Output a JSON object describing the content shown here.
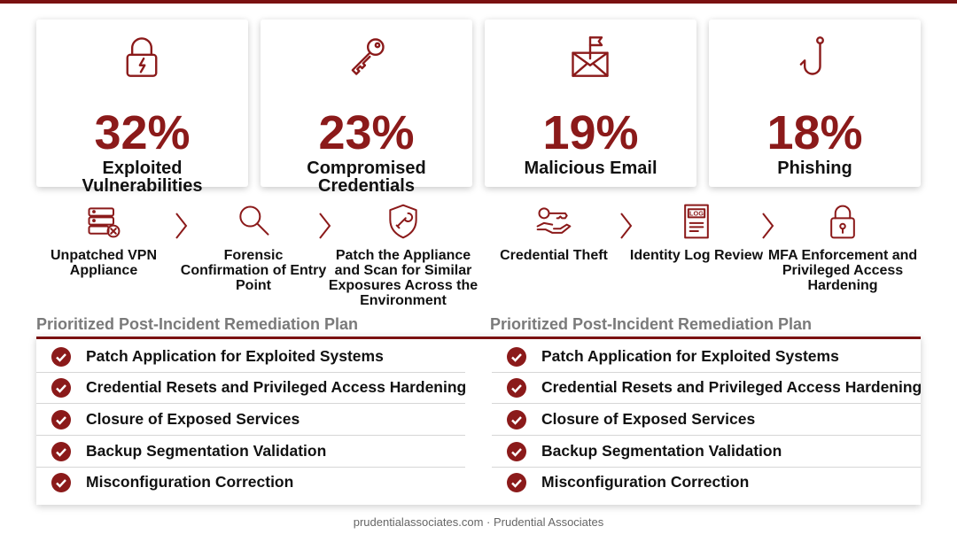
{
  "stats": [
    {
      "value": "32%",
      "label": "Exploited Vulnerabilities"
    },
    {
      "value": "23%",
      "label": "Compromised Credentials"
    },
    {
      "value": "19%",
      "label": "Malicious Email"
    },
    {
      "value": "18%",
      "label": "Phishing"
    }
  ],
  "flows": [
    {
      "steps": [
        "Unpatched VPN Appliance",
        "Forensic Confirmation of Entry Point",
        "Patch the Appliance and Scan for Similar Exposures Across the Environment"
      ]
    },
    {
      "steps": [
        "Credential Theft",
        "Identity Log Review",
        "MFA Enforcement and Privileged Access Hardening"
      ]
    }
  ],
  "plans": [
    {
      "title": "Prioritized Post-Incident Remediation Plan",
      "items": [
        "Patch Application for Exploited Systems",
        "Credential Resets and Privileged Access Hardening",
        "Closure of Exposed Services",
        "Backup Segmentation Validation",
        "Misconfiguration Correction"
      ]
    },
    {
      "title": "Prioritized Post-Incident Remediation Plan",
      "items": [
        "Patch Application for Exploited Systems",
        "Credential Resets and Privileged Access Hardening",
        "Closure of Exposed Services",
        "Backup Segmentation Validation",
        "Misconfiguration Correction"
      ]
    }
  ],
  "footer": "prudentialassociates.com · Prudential Associates"
}
